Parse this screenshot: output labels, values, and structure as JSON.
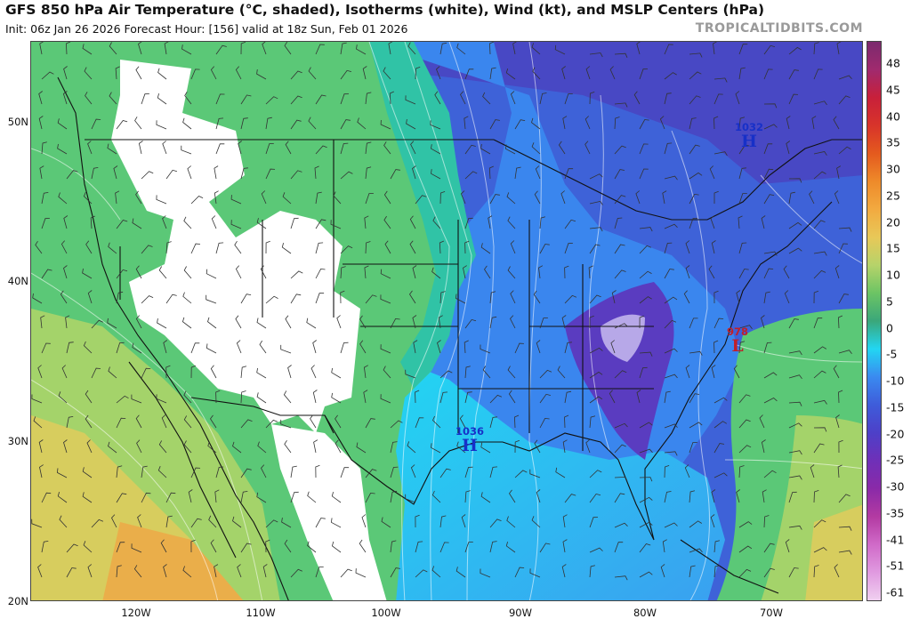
{
  "header": {
    "title": "GFS 850 hPa Air Temperature (°C, shaded), Isotherms (white), Wind (kt), and MSLP Centers (hPa)",
    "subtitle": "Init: 06z Jan 26 2026   Forecast Hour: [156]   valid at 18z Sun, Feb 01 2026",
    "site": "TROPICALTIDBITS.COM"
  },
  "axes": {
    "latitudes": [
      "50N",
      "40N",
      "30N",
      "20N"
    ],
    "longitudes": [
      "120W",
      "110W",
      "100W",
      "90W",
      "80W",
      "70W"
    ]
  },
  "colorbar": {
    "unit": "°C",
    "labels": [
      "48",
      "45",
      "40",
      "35",
      "30",
      "25",
      "20",
      "15",
      "10",
      "5",
      "0",
      "-5",
      "-10",
      "-15",
      "-20",
      "-25",
      "-30",
      "-35",
      "-41",
      "-51",
      "-61"
    ],
    "colors": [
      "#7b2a6e",
      "#a02a6e",
      "#c8203a",
      "#d8342a",
      "#e45a1e",
      "#ee8a2a",
      "#f2aa40",
      "#e8c858",
      "#b6d36a",
      "#6cc464",
      "#3aa77a",
      "#22d6f2",
      "#3a8af0",
      "#3e5cda",
      "#4d40c8",
      "#6f30b8",
      "#8a2aa8",
      "#b33aa2",
      "#d06ac8",
      "#e09ae0",
      "#f0d0f0"
    ]
  },
  "pressure_centers": [
    {
      "type": "H",
      "value": "1032",
      "place": "Quebec"
    },
    {
      "type": "H",
      "value": "1036",
      "place": "Gulf Coast"
    },
    {
      "type": "L",
      "value": "978",
      "place": "off Mid-Atlantic coast"
    }
  ]
}
